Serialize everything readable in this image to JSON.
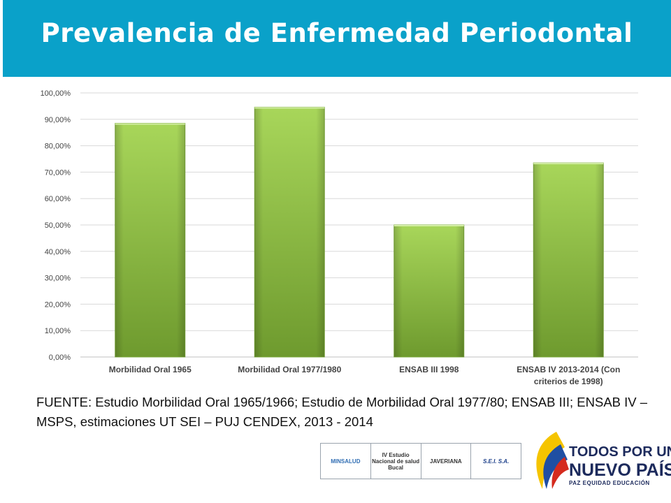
{
  "title": "Prevalencia de Enfermedad Periodontal",
  "chart_data": {
    "type": "bar",
    "categories": [
      [
        "Morbilidad Oral 1965"
      ],
      [
        "Morbilidad Oral 1977/1980"
      ],
      [
        "ENSAB III 1998"
      ],
      [
        "ENSAB IV 2013-2014 (Con",
        "criterios de 1998)"
      ]
    ],
    "values": [
      0.885,
      0.946,
      0.5,
      0.735
    ],
    "ylim": [
      0,
      1
    ],
    "yticks": [
      "0,00%",
      "10,00%",
      "20,00%",
      "30,00%",
      "40,00%",
      "50,00%",
      "60,00%",
      "70,00%",
      "80,00%",
      "90,00%",
      "100,00%"
    ],
    "grid": true,
    "bar_color": "#8dc63f"
  },
  "source": "FUENTE: Estudio Morbilidad Oral 1965/1966; Estudio de  Morbilidad Oral 1977/80; ENSAB III; ENSAB IV – MSPS, estimaciones UT SEI – PUJ CENDEX, 2013 - 2014",
  "logos": {
    "minsalud": "MINSALUD",
    "estudio": "IV Estudio Nacional de salud Bucal",
    "javeriana": "JAVERIANA",
    "sei": "S.E.I. S.A."
  },
  "brand": {
    "line1": "TODOS POR UN",
    "line2": "NUEVO PAÍS",
    "line3": "PAZ  EQUIDAD  EDUCACIÓN"
  }
}
